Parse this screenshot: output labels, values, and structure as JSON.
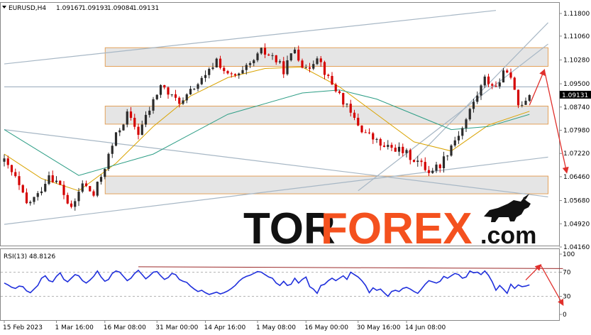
{
  "chart_data": {
    "type": "candlestick",
    "header": {
      "symbol": "EURUSD,H4",
      "open": "1.09167",
      "high": "1.09193",
      "low": "1.09084",
      "close": "1.09131"
    },
    "price_axis": {
      "ticks": [
        "1.11800",
        "1.11060",
        "1.10280",
        "1.09500",
        "1.08740",
        "1.07980",
        "1.07220",
        "1.06460",
        "1.05680",
        "1.04920",
        "1.04160"
      ],
      "current_price": "1.09131"
    },
    "time_axis": {
      "labels": [
        "15 Feb 2023",
        "1 Mar 16:00",
        "16 Mar 08:00",
        "31 Mar 00:00",
        "14 Apr 16:00",
        "1 May 08:00",
        "16 May 00:00",
        "30 May 16:00",
        "14 Jun 08:00"
      ]
    },
    "close_path": [
      [
        0,
        1.0695
      ],
      [
        3,
        1.064
      ],
      [
        6,
        1.0555
      ],
      [
        9,
        1.0585
      ],
      [
        12,
        1.0655
      ],
      [
        15,
        1.0615
      ],
      [
        18,
        1.0535
      ],
      [
        21,
        1.0625
      ],
      [
        24,
        1.0585
      ],
      [
        27,
        1.068
      ],
      [
        30,
        1.078
      ],
      [
        33,
        1.085
      ],
      [
        36,
        1.079
      ],
      [
        39,
        1.0865
      ],
      [
        42,
        1.0945
      ],
      [
        45,
        1.0905
      ],
      [
        48,
        1.089
      ],
      [
        51,
        1.094
      ],
      [
        54,
        1.097
      ],
      [
        57,
        1.103
      ],
      [
        60,
        1.0975
      ],
      [
        63,
        1.0975
      ],
      [
        66,
        1.101
      ],
      [
        69,
        1.1055
      ],
      [
        72,
        1.104
      ],
      [
        75,
        1.0995
      ],
      [
        78,
        1.1065
      ],
      [
        81,
        1.099
      ],
      [
        84,
        1.1045
      ],
      [
        87,
        1.0965
      ],
      [
        90,
        1.0915
      ],
      [
        93,
        1.085
      ],
      [
        96,
        1.08
      ],
      [
        99,
        1.077
      ],
      [
        102,
        1.074
      ],
      [
        105,
        1.074
      ],
      [
        108,
        1.072
      ],
      [
        111,
        1.0695
      ],
      [
        114,
        1.0665
      ],
      [
        117,
        1.0685
      ],
      [
        120,
        1.075
      ],
      [
        123,
        1.0805
      ],
      [
        126,
        1.089
      ],
      [
        129,
        1.0965
      ],
      [
        132,
        1.094
      ],
      [
        135,
        1.1
      ],
      [
        138,
        1.088
      ],
      [
        141,
        1.0913
      ]
    ],
    "moving_averages": [
      {
        "color": "#d9a300",
        "points": [
          [
            0,
            1.072
          ],
          [
            10,
            1.064
          ],
          [
            20,
            1.06
          ],
          [
            30,
            1.069
          ],
          [
            40,
            1.081
          ],
          [
            50,
            1.091
          ],
          [
            60,
            1.097
          ],
          [
            70,
            1.1
          ],
          [
            80,
            1.1005
          ],
          [
            90,
            1.094
          ],
          [
            100,
            1.085
          ],
          [
            110,
            1.076
          ],
          [
            120,
            1.073
          ],
          [
            130,
            1.0815
          ],
          [
            141,
            1.086
          ]
        ]
      },
      {
        "color": "#2e9e86",
        "points": [
          [
            0,
            1.08
          ],
          [
            20,
            1.065
          ],
          [
            40,
            1.072
          ],
          [
            60,
            1.085
          ],
          [
            80,
            1.092
          ],
          [
            90,
            1.093
          ],
          [
            100,
            1.09
          ],
          [
            110,
            1.085
          ],
          [
            120,
            1.08
          ],
          [
            130,
            1.081
          ],
          [
            141,
            1.085
          ]
        ]
      }
    ],
    "zones": [
      {
        "from_bar": 29,
        "to_bar": 146,
        "low": 1.1007,
        "high": 1.1068
      },
      {
        "from_bar": 29,
        "to_bar": 146,
        "low": 1.0818,
        "high": 1.0877
      },
      {
        "from_bar": 29,
        "to_bar": 146,
        "low": 1.059,
        "high": 1.0648
      }
    ],
    "trendlines": [
      {
        "from": [
          0,
          1.1015
        ],
        "to": [
          132,
          1.119
        ]
      },
      {
        "from": [
          0,
          1.094
        ],
        "to": [
          146,
          1.094
        ]
      },
      {
        "from": [
          0,
          1.049
        ],
        "to": [
          146,
          1.071
        ]
      },
      {
        "from": [
          0,
          1.08
        ],
        "to": [
          146,
          1.058
        ]
      },
      {
        "from": [
          95,
          1.06
        ],
        "to": [
          146,
          1.108
        ]
      },
      {
        "from": [
          110,
          1.07
        ],
        "to": [
          146,
          1.115
        ]
      }
    ],
    "forecast_arrows": [
      {
        "from": [
          141,
          1.088
        ],
        "to": [
          145,
          1.0995
        ]
      },
      {
        "from": [
          145,
          1.0995
        ],
        "to": [
          151,
          1.066
        ]
      }
    ],
    "rsi": {
      "label": "RSI(13) 48.8126",
      "ticks": [
        "100",
        "70",
        "30",
        "0"
      ],
      "levels": [
        100,
        70,
        30,
        0
      ],
      "values": [
        52,
        49,
        45,
        43,
        47,
        46,
        39,
        36,
        42,
        48,
        60,
        64,
        56,
        54,
        63,
        69,
        58,
        54,
        60,
        66,
        64,
        56,
        52,
        57,
        63,
        72,
        62,
        55,
        58,
        68,
        72,
        70,
        63,
        56,
        60,
        68,
        73,
        66,
        59,
        64,
        70,
        71,
        64,
        58,
        61,
        68,
        66,
        58,
        55,
        53,
        47,
        42,
        38,
        40,
        36,
        33,
        35,
        37,
        34,
        36,
        39,
        43,
        48,
        55,
        60,
        63,
        65,
        68,
        71,
        70,
        66,
        62,
        60,
        52,
        48,
        55,
        48,
        50,
        60,
        52,
        58,
        62,
        46,
        42,
        35,
        48,
        50,
        56,
        60,
        56,
        60,
        64,
        58,
        70,
        66,
        62,
        56,
        48,
        36,
        44,
        40,
        42,
        36,
        30,
        38,
        40,
        38,
        43,
        45,
        42,
        38,
        35,
        42,
        50,
        56,
        54,
        52,
        55,
        63,
        60,
        64,
        68,
        66,
        60,
        62,
        72,
        69,
        70,
        66,
        72,
        65,
        54,
        40,
        48,
        42,
        35,
        50,
        43,
        49,
        46,
        47,
        49
      ],
      "divergence_line": {
        "from": [
          36,
          79
        ],
        "to": [
          150,
          76
        ]
      },
      "forecast_arrows": [
        {
          "from": [
            140,
            57
          ],
          "to": [
            144,
            82
          ]
        },
        {
          "from": [
            144,
            82
          ],
          "to": [
            150,
            16
          ]
        }
      ]
    },
    "colors": {
      "bull": "#2b2b2b",
      "bear": "#d40000",
      "zone_fill": "#e2e2e2",
      "zone_border": "#e3a15a",
      "trendline": "#a7b7c5",
      "rsi_line": "#1f2fdc",
      "forecast": "#e0302c",
      "divergence": "#9c2a2a",
      "logo_dark": "#111111",
      "logo_accent": "#f4511e"
    }
  },
  "logo": {
    "part1": "TOR",
    "part2": "FOREX",
    "part3": ".com"
  }
}
